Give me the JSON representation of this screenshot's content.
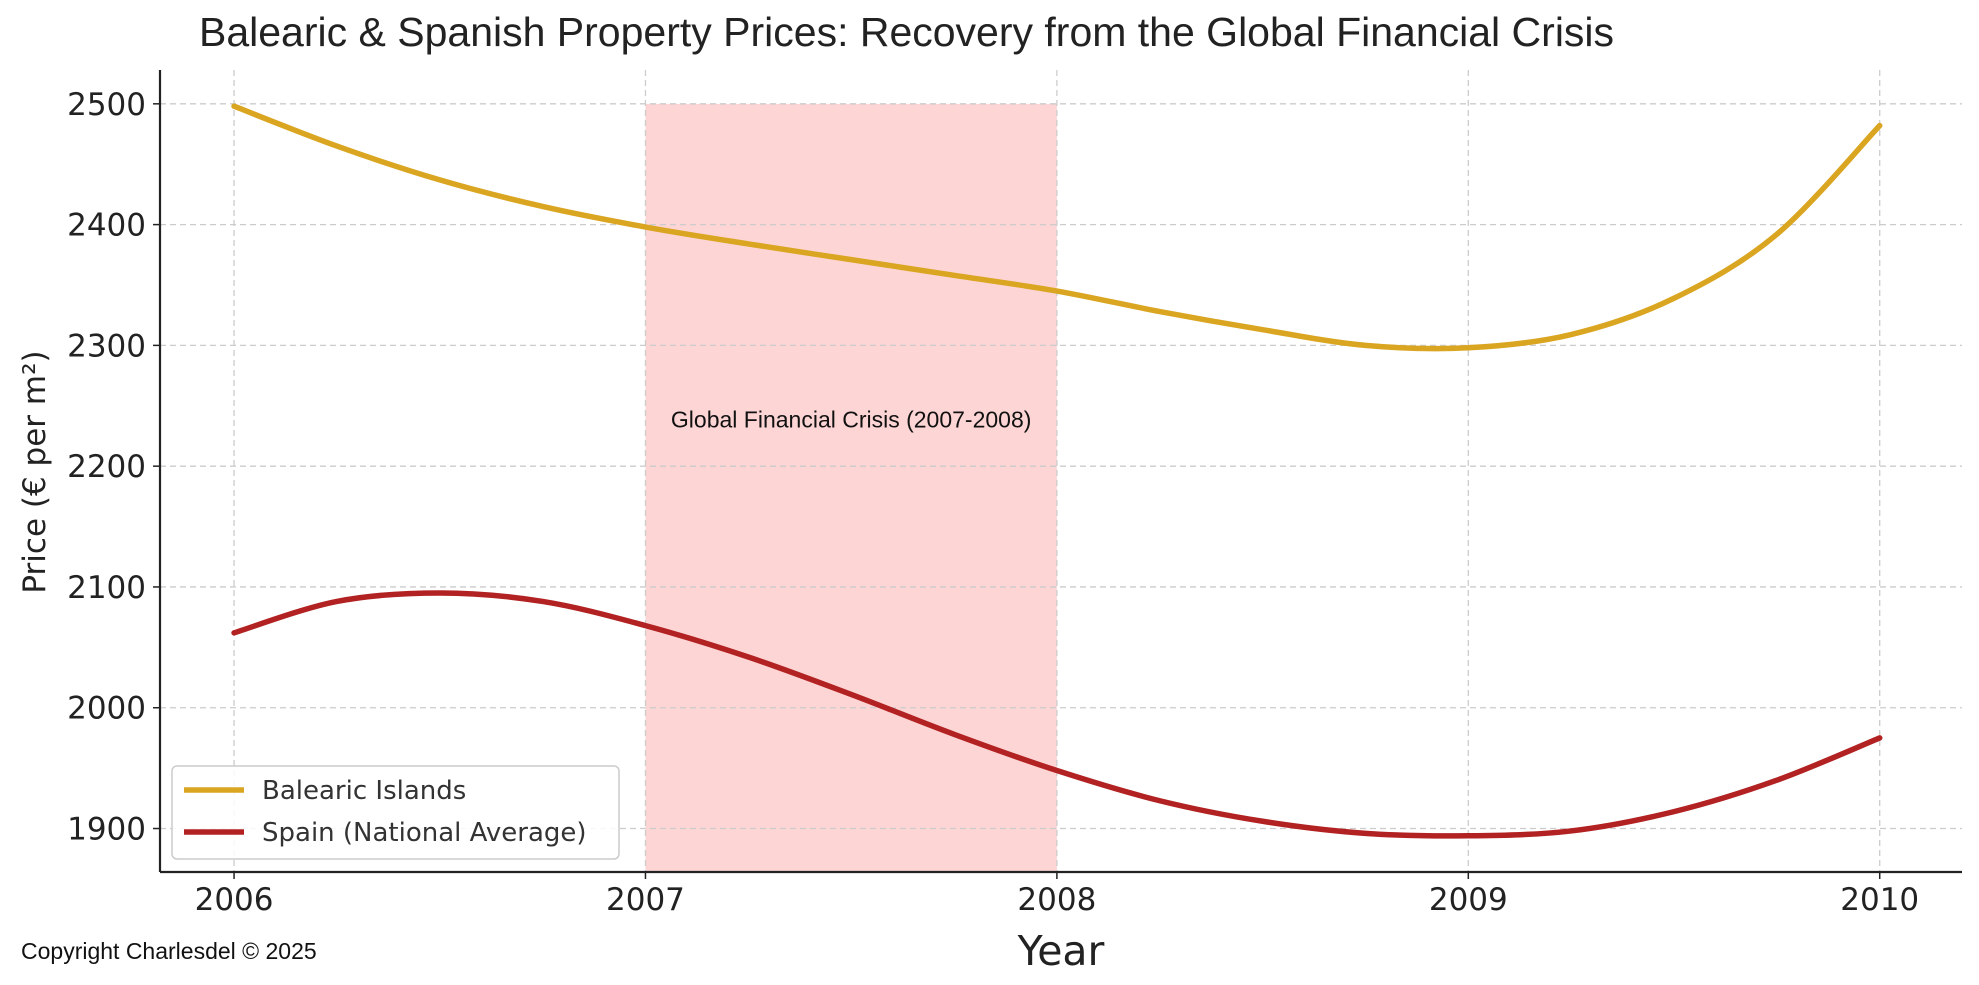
{
  "chart_data": {
    "type": "line",
    "title": "Balearic & Spanish Property Prices: Recovery from the Global Financial Crisis",
    "xlabel": "Year",
    "ylabel": "Price (€ per m²)",
    "xlim": [
      2005.82,
      2010.2
    ],
    "ylim": [
      1864,
      2528
    ],
    "x_ticks": [
      2006,
      2007,
      2008,
      2009,
      2010
    ],
    "x_tick_labels": [
      "2006",
      "2007",
      "2008",
      "2009",
      "2010"
    ],
    "y_ticks": [
      1900,
      2000,
      2100,
      2200,
      2300,
      2400,
      2500
    ],
    "y_tick_labels": [
      "1900",
      "2000",
      "2100",
      "2200",
      "2300",
      "2400",
      "2500"
    ],
    "grid": true,
    "legend_position": "lower-left",
    "series": [
      {
        "name": "Balearic Islands",
        "color": "#DAA520",
        "x": [
          2006,
          2006.25,
          2006.5,
          2006.75,
          2007,
          2007.25,
          2007.5,
          2007.75,
          2008,
          2008.25,
          2008.5,
          2008.75,
          2009,
          2009.25,
          2009.5,
          2009.75,
          2010
        ],
        "y": [
          2498,
          2465,
          2437,
          2415,
          2398,
          2384,
          2371,
          2358,
          2345,
          2328,
          2313,
          2300,
          2298,
          2309,
          2339,
          2392,
          2482
        ]
      },
      {
        "name": "Spain (National Average)",
        "color": "#B22222",
        "x": [
          2006,
          2006.25,
          2006.5,
          2006.75,
          2007,
          2007.25,
          2007.5,
          2007.75,
          2008,
          2008.25,
          2008.5,
          2008.75,
          2009,
          2009.25,
          2009.5,
          2009.75,
          2010
        ],
        "y": [
          2062,
          2088,
          2095,
          2088,
          2068,
          2042,
          2011,
          1978,
          1948,
          1923,
          1906,
          1896,
          1894,
          1898,
          1914,
          1940,
          1975
        ]
      }
    ],
    "shaded_region": {
      "x_start": 2007,
      "x_end": 2008,
      "y_top": 2500,
      "color": "#FDD5D5",
      "label": "Global Financial Crisis (2007-2008)",
      "label_y": 2232
    },
    "footer": "Copyright Charlesdel © 2025"
  }
}
